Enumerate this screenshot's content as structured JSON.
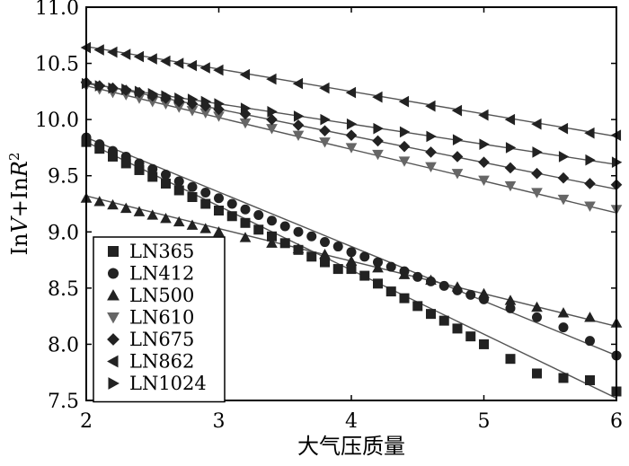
{
  "chart_data": {
    "type": "line",
    "title": "",
    "xlabel": "大气压质量",
    "ylabel_parts": {
      "a": "In",
      "b": "V",
      "c": "+In",
      "d": "R",
      "sup": "2"
    },
    "xlim": [
      2,
      6
    ],
    "ylim": [
      7.5,
      11.0
    ],
    "x_ticks": [
      2,
      3,
      4,
      5,
      6
    ],
    "x_tick_labels": [
      "2",
      "3",
      "4",
      "5",
      "6"
    ],
    "y_ticks": [
      7.5,
      8.0,
      8.5,
      9.0,
      9.5,
      10.0,
      10.5,
      11.0
    ],
    "y_tick_labels": [
      "7.5",
      "8.0",
      "8.5",
      "9.0",
      "9.5",
      "10.0",
      "10.5",
      "11.0"
    ],
    "grid": false,
    "legend_position": "bottom-left",
    "series": [
      {
        "name": "LN365",
        "marker": "square",
        "line": [
          [
            2,
            9.8
          ],
          [
            6,
            7.52
          ]
        ],
        "points": [
          [
            2.0,
            9.8
          ],
          [
            2.1,
            9.74
          ],
          [
            2.2,
            9.67
          ],
          [
            2.3,
            9.61
          ],
          [
            2.4,
            9.55
          ],
          [
            2.5,
            9.49
          ],
          [
            2.6,
            9.43
          ],
          [
            2.7,
            9.37
          ],
          [
            2.8,
            9.31
          ],
          [
            2.9,
            9.25
          ],
          [
            3.0,
            9.19
          ],
          [
            3.1,
            9.14
          ],
          [
            3.2,
            9.08
          ],
          [
            3.3,
            9.02
          ],
          [
            3.4,
            8.96
          ],
          [
            3.5,
            8.9
          ],
          [
            3.6,
            8.84
          ],
          [
            3.7,
            8.78
          ],
          [
            3.8,
            8.73
          ],
          [
            3.9,
            8.67
          ],
          [
            4.0,
            8.67
          ],
          [
            4.1,
            8.61
          ],
          [
            4.2,
            8.54
          ],
          [
            4.3,
            8.47
          ],
          [
            4.4,
            8.41
          ],
          [
            4.5,
            8.34
          ],
          [
            4.6,
            8.27
          ],
          [
            4.7,
            8.21
          ],
          [
            4.8,
            8.14
          ],
          [
            4.9,
            8.07
          ],
          [
            5.0,
            8.0
          ],
          [
            5.2,
            7.87
          ],
          [
            5.4,
            7.74
          ],
          [
            5.6,
            7.7
          ],
          [
            5.8,
            7.68
          ],
          [
            6.0,
            7.58
          ]
        ]
      },
      {
        "name": "LN412",
        "marker": "circle",
        "line": [
          [
            2,
            9.84
          ],
          [
            6,
            7.9
          ]
        ],
        "points": [
          [
            2.0,
            9.84
          ],
          [
            2.1,
            9.78
          ],
          [
            2.2,
            9.72
          ],
          [
            2.3,
            9.67
          ],
          [
            2.4,
            9.61
          ],
          [
            2.5,
            9.56
          ],
          [
            2.6,
            9.51
          ],
          [
            2.7,
            9.45
          ],
          [
            2.8,
            9.4
          ],
          [
            2.9,
            9.35
          ],
          [
            3.0,
            9.3
          ],
          [
            3.1,
            9.25
          ],
          [
            3.2,
            9.2
          ],
          [
            3.3,
            9.15
          ],
          [
            3.4,
            9.1
          ],
          [
            3.5,
            9.05
          ],
          [
            3.6,
            9.0
          ],
          [
            3.7,
            8.96
          ],
          [
            3.8,
            8.91
          ],
          [
            3.9,
            8.87
          ],
          [
            4.0,
            8.82
          ],
          [
            4.1,
            8.78
          ],
          [
            4.2,
            8.73
          ],
          [
            4.3,
            8.69
          ],
          [
            4.4,
            8.65
          ],
          [
            4.5,
            8.6
          ],
          [
            4.6,
            8.56
          ],
          [
            4.7,
            8.52
          ],
          [
            4.8,
            8.48
          ],
          [
            4.9,
            8.44
          ],
          [
            5.0,
            8.4
          ],
          [
            5.2,
            8.32
          ],
          [
            5.4,
            8.24
          ],
          [
            5.6,
            8.15
          ],
          [
            5.8,
            8.03
          ],
          [
            6.0,
            7.9
          ]
        ]
      },
      {
        "name": "LN500",
        "marker": "triangle-up",
        "line": [
          [
            2,
            9.32
          ],
          [
            6,
            8.16
          ]
        ],
        "points": [
          [
            2.0,
            9.3
          ],
          [
            2.1,
            9.27
          ],
          [
            2.2,
            9.24
          ],
          [
            2.3,
            9.21
          ],
          [
            2.4,
            9.18
          ],
          [
            2.5,
            9.15
          ],
          [
            2.6,
            9.12
          ],
          [
            2.7,
            9.09
          ],
          [
            2.8,
            9.06
          ],
          [
            2.9,
            9.03
          ],
          [
            3.0,
            9.0
          ],
          [
            3.2,
            8.95
          ],
          [
            3.4,
            8.9
          ],
          [
            3.6,
            8.85
          ],
          [
            3.8,
            8.8
          ],
          [
            4.0,
            8.74
          ],
          [
            4.2,
            8.68
          ],
          [
            4.4,
            8.62
          ],
          [
            4.6,
            8.57
          ],
          [
            4.8,
            8.51
          ],
          [
            5.0,
            8.45
          ],
          [
            5.2,
            8.39
          ],
          [
            5.4,
            8.33
          ],
          [
            5.6,
            8.28
          ],
          [
            5.8,
            8.24
          ],
          [
            6.0,
            8.19
          ]
        ]
      },
      {
        "name": "LN610",
        "marker": "triangle-down",
        "line": [
          [
            2,
            10.3
          ],
          [
            6,
            9.17
          ]
        ],
        "points": [
          [
            2.0,
            10.3
          ],
          [
            2.1,
            10.27
          ],
          [
            2.2,
            10.24
          ],
          [
            2.3,
            10.22
          ],
          [
            2.4,
            10.19
          ],
          [
            2.5,
            10.16
          ],
          [
            2.6,
            10.14
          ],
          [
            2.7,
            10.11
          ],
          [
            2.8,
            10.08
          ],
          [
            2.9,
            10.06
          ],
          [
            3.0,
            10.03
          ],
          [
            3.2,
            9.97
          ],
          [
            3.4,
            9.92
          ],
          [
            3.6,
            9.86
          ],
          [
            3.8,
            9.8
          ],
          [
            4.0,
            9.75
          ],
          [
            4.2,
            9.69
          ],
          [
            4.4,
            9.63
          ],
          [
            4.6,
            9.58
          ],
          [
            4.8,
            9.52
          ],
          [
            5.0,
            9.46
          ],
          [
            5.2,
            9.41
          ],
          [
            5.4,
            9.35
          ],
          [
            5.6,
            9.29
          ],
          [
            5.8,
            9.23
          ],
          [
            6.0,
            9.2
          ]
        ]
      },
      {
        "name": "LN675",
        "marker": "diamond",
        "line": [
          [
            2,
            10.33
          ],
          [
            6,
            9.38
          ]
        ],
        "points": [
          [
            2.0,
            10.33
          ],
          [
            2.1,
            10.3
          ],
          [
            2.2,
            10.28
          ],
          [
            2.3,
            10.26
          ],
          [
            2.4,
            10.24
          ],
          [
            2.5,
            10.21
          ],
          [
            2.6,
            10.19
          ],
          [
            2.7,
            10.16
          ],
          [
            2.8,
            10.14
          ],
          [
            2.9,
            10.12
          ],
          [
            3.0,
            10.09
          ],
          [
            3.2,
            10.05
          ],
          [
            3.4,
            10.0
          ],
          [
            3.6,
            9.95
          ],
          [
            3.8,
            9.9
          ],
          [
            4.0,
            9.86
          ],
          [
            4.2,
            9.81
          ],
          [
            4.4,
            9.76
          ],
          [
            4.6,
            9.71
          ],
          [
            4.8,
            9.67
          ],
          [
            5.0,
            9.62
          ],
          [
            5.2,
            9.57
          ],
          [
            5.4,
            9.52
          ],
          [
            5.6,
            9.48
          ],
          [
            5.8,
            9.43
          ],
          [
            6.0,
            9.42
          ]
        ]
      },
      {
        "name": "LN862",
        "marker": "triangle-left",
        "line": [
          [
            2,
            10.65
          ],
          [
            6,
            9.85
          ]
        ],
        "points": [
          [
            2.0,
            10.64
          ],
          [
            2.1,
            10.62
          ],
          [
            2.2,
            10.6
          ],
          [
            2.3,
            10.58
          ],
          [
            2.4,
            10.56
          ],
          [
            2.5,
            10.54
          ],
          [
            2.6,
            10.52
          ],
          [
            2.7,
            10.5
          ],
          [
            2.8,
            10.48
          ],
          [
            2.9,
            10.46
          ],
          [
            3.0,
            10.44
          ],
          [
            3.2,
            10.4
          ],
          [
            3.4,
            10.36
          ],
          [
            3.6,
            10.32
          ],
          [
            3.8,
            10.28
          ],
          [
            4.0,
            10.24
          ],
          [
            4.2,
            10.2
          ],
          [
            4.4,
            10.16
          ],
          [
            4.6,
            10.12
          ],
          [
            4.8,
            10.08
          ],
          [
            5.0,
            10.04
          ],
          [
            5.2,
            10.0
          ],
          [
            5.4,
            9.96
          ],
          [
            5.6,
            9.92
          ],
          [
            5.8,
            9.88
          ],
          [
            6.0,
            9.86
          ]
        ]
      },
      {
        "name": "LN1024",
        "marker": "triangle-right",
        "line": [
          [
            2,
            10.32
          ],
          [
            6,
            9.6
          ]
        ],
        "points": [
          [
            2.0,
            10.32
          ],
          [
            2.1,
            10.3
          ],
          [
            2.2,
            10.28
          ],
          [
            2.3,
            10.27
          ],
          [
            2.4,
            10.25
          ],
          [
            2.5,
            10.23
          ],
          [
            2.6,
            10.21
          ],
          [
            2.7,
            10.19
          ],
          [
            2.8,
            10.18
          ],
          [
            2.9,
            10.16
          ],
          [
            3.0,
            10.14
          ],
          [
            3.2,
            10.1
          ],
          [
            3.4,
            10.07
          ],
          [
            3.6,
            10.03
          ],
          [
            3.8,
            10.0
          ],
          [
            4.0,
            9.96
          ],
          [
            4.2,
            9.92
          ],
          [
            4.4,
            9.89
          ],
          [
            4.6,
            9.85
          ],
          [
            4.8,
            9.82
          ],
          [
            5.0,
            9.78
          ],
          [
            5.2,
            9.75
          ],
          [
            5.4,
            9.71
          ],
          [
            5.6,
            9.67
          ],
          [
            5.8,
            9.64
          ],
          [
            6.0,
            9.62
          ]
        ]
      }
    ]
  },
  "colors": {
    "marker": "#222222",
    "marker_light": "#666666",
    "fit_line": "#555555",
    "axis": "#000000"
  }
}
